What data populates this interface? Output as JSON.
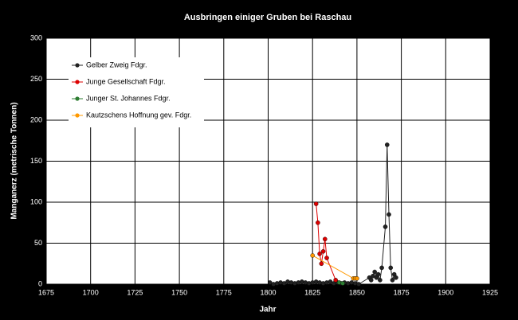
{
  "chart_data": {
    "type": "line",
    "title": "Ausbringen einiger Gruben bei Raschau",
    "x_label": "Jahr",
    "y_label": "Manganerz (metrische Tonnen)",
    "xlim": [
      1675,
      1925
    ],
    "xticks": [
      1675,
      1700,
      1725,
      1750,
      1775,
      1800,
      1825,
      1850,
      1875,
      1900,
      1925
    ],
    "ylim": [
      0,
      300
    ],
    "yticks": [
      0,
      50,
      100,
      150,
      200,
      250,
      300
    ],
    "grid": true,
    "legend": "upper left",
    "series": [
      {
        "name": "Gelber Zweig Fdgr.",
        "color": "#222222",
        "x": [
          1801,
          1803,
          1805,
          1807,
          1809,
          1811,
          1813,
          1815,
          1817,
          1819,
          1821,
          1823,
          1825,
          1827,
          1829,
          1831,
          1833,
          1835,
          1837,
          1839,
          1841,
          1843,
          1845,
          1847,
          1849,
          1851,
          1857,
          1858,
          1859,
          1860,
          1861,
          1862,
          1863,
          1864,
          1866,
          1867,
          1868,
          1869,
          1870,
          1871,
          1872
        ],
        "values": [
          2,
          0,
          1,
          2,
          1,
          3,
          2,
          1,
          2,
          3,
          2,
          1,
          2,
          3,
          2,
          1,
          2,
          3,
          1,
          2,
          1,
          2,
          1,
          2,
          1,
          0,
          8,
          5,
          10,
          15,
          8,
          12,
          5,
          20,
          70,
          170,
          85,
          20,
          5,
          12,
          8
        ]
      },
      {
        "name": "Junge Gesellschaft Fdgr.",
        "color": "#dd0000",
        "x": [
          1827,
          1828,
          1829,
          1830,
          1831,
          1832,
          1833,
          1838
        ],
        "values": [
          98,
          75,
          37,
          25,
          40,
          55,
          32,
          5
        ]
      },
      {
        "name": "Junger St. Johannes Fdgr.",
        "color": "#2e7d32",
        "x": [
          1840,
          1842
        ],
        "values": [
          2,
          1
        ]
      },
      {
        "name": "Kautzschens Hoffnung gev. Fdgr.",
        "color": "#ff9900",
        "x": [
          1825,
          1848,
          1849,
          1850
        ],
        "values": [
          35,
          7,
          7,
          7
        ]
      }
    ]
  }
}
